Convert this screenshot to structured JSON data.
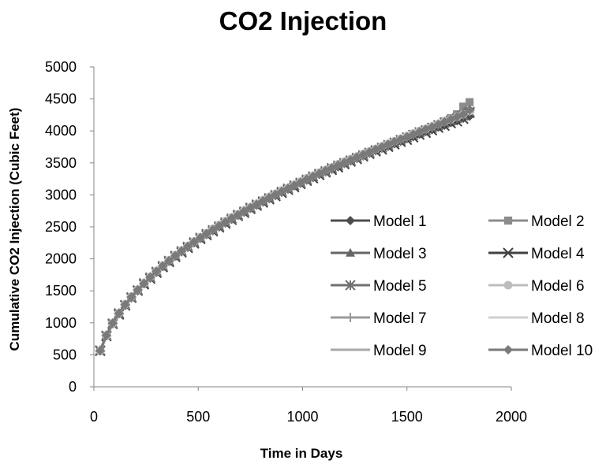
{
  "chart_data": {
    "type": "line",
    "title": "CO2 Injection",
    "xlabel": "Time in Days",
    "ylabel": "Cumulative CO2 Injection (Cubic Feet)",
    "xlim": [
      0,
      2000
    ],
    "ylim": [
      0,
      5000
    ],
    "xticks": [
      "0",
      "500",
      "1000",
      "1500",
      "2000"
    ],
    "yticks": [
      "0",
      "500",
      "1000",
      "1500",
      "2000",
      "2500",
      "3000",
      "3500",
      "4000",
      "4500",
      "5000"
    ],
    "grid": false,
    "legend_position": "right",
    "x": [
      30,
      60,
      90,
      120,
      150,
      180,
      210,
      240,
      270,
      300,
      330,
      360,
      390,
      420,
      450,
      480,
      510,
      540,
      570,
      600,
      630,
      660,
      690,
      720,
      750,
      780,
      810,
      840,
      870,
      900,
      930,
      960,
      990,
      1020,
      1050,
      1080,
      1110,
      1140,
      1170,
      1200,
      1230,
      1260,
      1290,
      1320,
      1350,
      1380,
      1410,
      1440,
      1470,
      1500,
      1530,
      1560,
      1590,
      1620,
      1650,
      1680,
      1710,
      1740,
      1770,
      1800
    ],
    "series": [
      {
        "name": "Model 1",
        "marker": "diamond",
        "color": "#4d4d4d",
        "values": [
          560,
          800,
          990,
          1140,
          1270,
          1390,
          1500,
          1610,
          1700,
          1790,
          1880,
          1960,
          2040,
          2110,
          2180,
          2250,
          2320,
          2380,
          2440,
          2500,
          2560,
          2620,
          2680,
          2730,
          2790,
          2840,
          2890,
          2940,
          2990,
          3040,
          3090,
          3140,
          3180,
          3230,
          3270,
          3320,
          3360,
          3400,
          3440,
          3490,
          3530,
          3570,
          3610,
          3650,
          3690,
          3730,
          3760,
          3800,
          3840,
          3880,
          3910,
          3950,
          3990,
          4020,
          4060,
          4090,
          4130,
          4160,
          4200,
          4230
        ]
      },
      {
        "name": "Model 2",
        "marker": "square",
        "color": "#8c8c8c",
        "values": [
          560,
          800,
          990,
          1140,
          1280,
          1400,
          1510,
          1610,
          1710,
          1800,
          1880,
          1960,
          2040,
          2120,
          2190,
          2260,
          2320,
          2390,
          2450,
          2510,
          2570,
          2620,
          2680,
          2740,
          2790,
          2840,
          2900,
          2950,
          3000,
          3050,
          3090,
          3140,
          3190,
          3240,
          3280,
          3330,
          3370,
          3410,
          3460,
          3500,
          3540,
          3580,
          3620,
          3660,
          3700,
          3740,
          3780,
          3820,
          3860,
          3900,
          3940,
          3980,
          4020,
          4060,
          4100,
          4150,
          4200,
          4260,
          4380,
          4450
        ]
      },
      {
        "name": "Model 3",
        "marker": "triangle",
        "color": "#666666",
        "values": [
          570,
          810,
          1000,
          1150,
          1290,
          1410,
          1520,
          1620,
          1720,
          1810,
          1890,
          1970,
          2050,
          2130,
          2200,
          2270,
          2330,
          2400,
          2460,
          2520,
          2580,
          2640,
          2690,
          2750,
          2800,
          2860,
          2910,
          2960,
          3010,
          3060,
          3110,
          3150,
          3200,
          3250,
          3290,
          3340,
          3380,
          3420,
          3470,
          3510,
          3550,
          3590,
          3630,
          3670,
          3710,
          3750,
          3790,
          3830,
          3870,
          3910,
          3950,
          3990,
          4030,
          4070,
          4110,
          4150,
          4190,
          4240,
          4290,
          4340
        ]
      },
      {
        "name": "Model 4",
        "marker": "x",
        "color": "#404040",
        "values": [
          560,
          790,
          980,
          1130,
          1270,
          1390,
          1500,
          1600,
          1690,
          1780,
          1870,
          1950,
          2030,
          2100,
          2170,
          2240,
          2310,
          2370,
          2430,
          2490,
          2550,
          2610,
          2670,
          2720,
          2780,
          2830,
          2880,
          2930,
          2980,
          3030,
          3080,
          3120,
          3170,
          3220,
          3260,
          3310,
          3350,
          3390,
          3430,
          3480,
          3520,
          3560,
          3600,
          3640,
          3680,
          3710,
          3750,
          3790,
          3830,
          3860,
          3900,
          3940,
          3970,
          4010,
          4050,
          4080,
          4120,
          4150,
          4190,
          4280
        ]
      },
      {
        "name": "Model 5",
        "marker": "asterisk",
        "color": "#707070",
        "values": [
          570,
          800,
          990,
          1150,
          1280,
          1400,
          1510,
          1620,
          1710,
          1800,
          1890,
          1970,
          2050,
          2120,
          2190,
          2260,
          2330,
          2390,
          2450,
          2510,
          2570,
          2630,
          2690,
          2740,
          2800,
          2850,
          2900,
          2950,
          3000,
          3050,
          3100,
          3150,
          3190,
          3240,
          3290,
          3330,
          3370,
          3420,
          3460,
          3500,
          3540,
          3580,
          3620,
          3660,
          3700,
          3740,
          3780,
          3820,
          3860,
          3900,
          3940,
          3980,
          4010,
          4050,
          4090,
          4130,
          4160,
          4200,
          4240,
          4300
        ]
      },
      {
        "name": "Model 6",
        "marker": "circle",
        "color": "#bdbdbd",
        "values": [
          560,
          800,
          990,
          1150,
          1290,
          1410,
          1520,
          1620,
          1720,
          1810,
          1900,
          1980,
          2060,
          2130,
          2200,
          2270,
          2340,
          2400,
          2470,
          2530,
          2590,
          2650,
          2700,
          2760,
          2810,
          2860,
          2920,
          2970,
          3020,
          3070,
          3110,
          3160,
          3210,
          3260,
          3300,
          3350,
          3390,
          3430,
          3480,
          3520,
          3560,
          3600,
          3640,
          3680,
          3720,
          3760,
          3800,
          3840,
          3880,
          3920,
          3960,
          4000,
          4030,
          4070,
          4110,
          4150,
          4180,
          4220,
          4260,
          4310
        ]
      },
      {
        "name": "Model 7",
        "marker": "plus",
        "color": "#9a9a9a",
        "values": [
          565,
          805,
          995,
          1145,
          1285,
          1405,
          1515,
          1615,
          1715,
          1805,
          1885,
          1965,
          2045,
          2125,
          2195,
          2265,
          2325,
          2395,
          2455,
          2515,
          2575,
          2635,
          2685,
          2745,
          2795,
          2855,
          2905,
          2955,
          3005,
          3055,
          3105,
          3145,
          3195,
          3245,
          3285,
          3335,
          3375,
          3415,
          3465,
          3505,
          3545,
          3585,
          3625,
          3665,
          3705,
          3745,
          3785,
          3825,
          3865,
          3905,
          3945,
          3985,
          4025,
          4065,
          4105,
          4145,
          4185,
          4225,
          4265,
          4320
        ]
      },
      {
        "name": "Model 8",
        "marker": "none",
        "color": "#cfcfcf",
        "values": [
          555,
          795,
          985,
          1135,
          1275,
          1395,
          1505,
          1605,
          1700,
          1790,
          1875,
          1955,
          2035,
          2110,
          2180,
          2250,
          2315,
          2380,
          2440,
          2500,
          2560,
          2620,
          2675,
          2730,
          2785,
          2835,
          2885,
          2935,
          2985,
          3035,
          3085,
          3130,
          3180,
          3225,
          3270,
          3315,
          3360,
          3400,
          3445,
          3485,
          3525,
          3565,
          3605,
          3645,
          3685,
          3725,
          3765,
          3805,
          3845,
          3880,
          3920,
          3960,
          3995,
          4035,
          4075,
          4110,
          4150,
          4185,
          4225,
          4290
        ]
      },
      {
        "name": "Model 9",
        "marker": "dash",
        "color": "#a8a8a8",
        "values": [
          560,
          800,
          990,
          1140,
          1280,
          1400,
          1510,
          1610,
          1710,
          1800,
          1880,
          1960,
          2040,
          2120,
          2190,
          2260,
          2320,
          2390,
          2450,
          2510,
          2570,
          2630,
          2680,
          2740,
          2790,
          2850,
          2900,
          2950,
          3000,
          3050,
          3100,
          3140,
          3190,
          3240,
          3280,
          3330,
          3370,
          3410,
          3460,
          3500,
          3540,
          3580,
          3620,
          3660,
          3700,
          3740,
          3780,
          3820,
          3860,
          3900,
          3940,
          3980,
          4020,
          4060,
          4100,
          4140,
          4180,
          4220,
          4260,
          4310
        ]
      },
      {
        "name": "Model 10",
        "marker": "diamond",
        "color": "#7a7a7a",
        "values": [
          565,
          805,
          995,
          1150,
          1285,
          1405,
          1515,
          1615,
          1715,
          1805,
          1890,
          1970,
          2050,
          2125,
          2195,
          2265,
          2330,
          2395,
          2455,
          2515,
          2575,
          2635,
          2690,
          2745,
          2800,
          2850,
          2905,
          2955,
          3005,
          3055,
          3100,
          3150,
          3195,
          3245,
          3290,
          3335,
          3380,
          3420,
          3465,
          3505,
          3545,
          3590,
          3630,
          3670,
          3710,
          3750,
          3790,
          3830,
          3870,
          3905,
          3945,
          3985,
          4025,
          4060,
          4100,
          4140,
          4180,
          4220,
          4260,
          4330
        ]
      }
    ]
  }
}
